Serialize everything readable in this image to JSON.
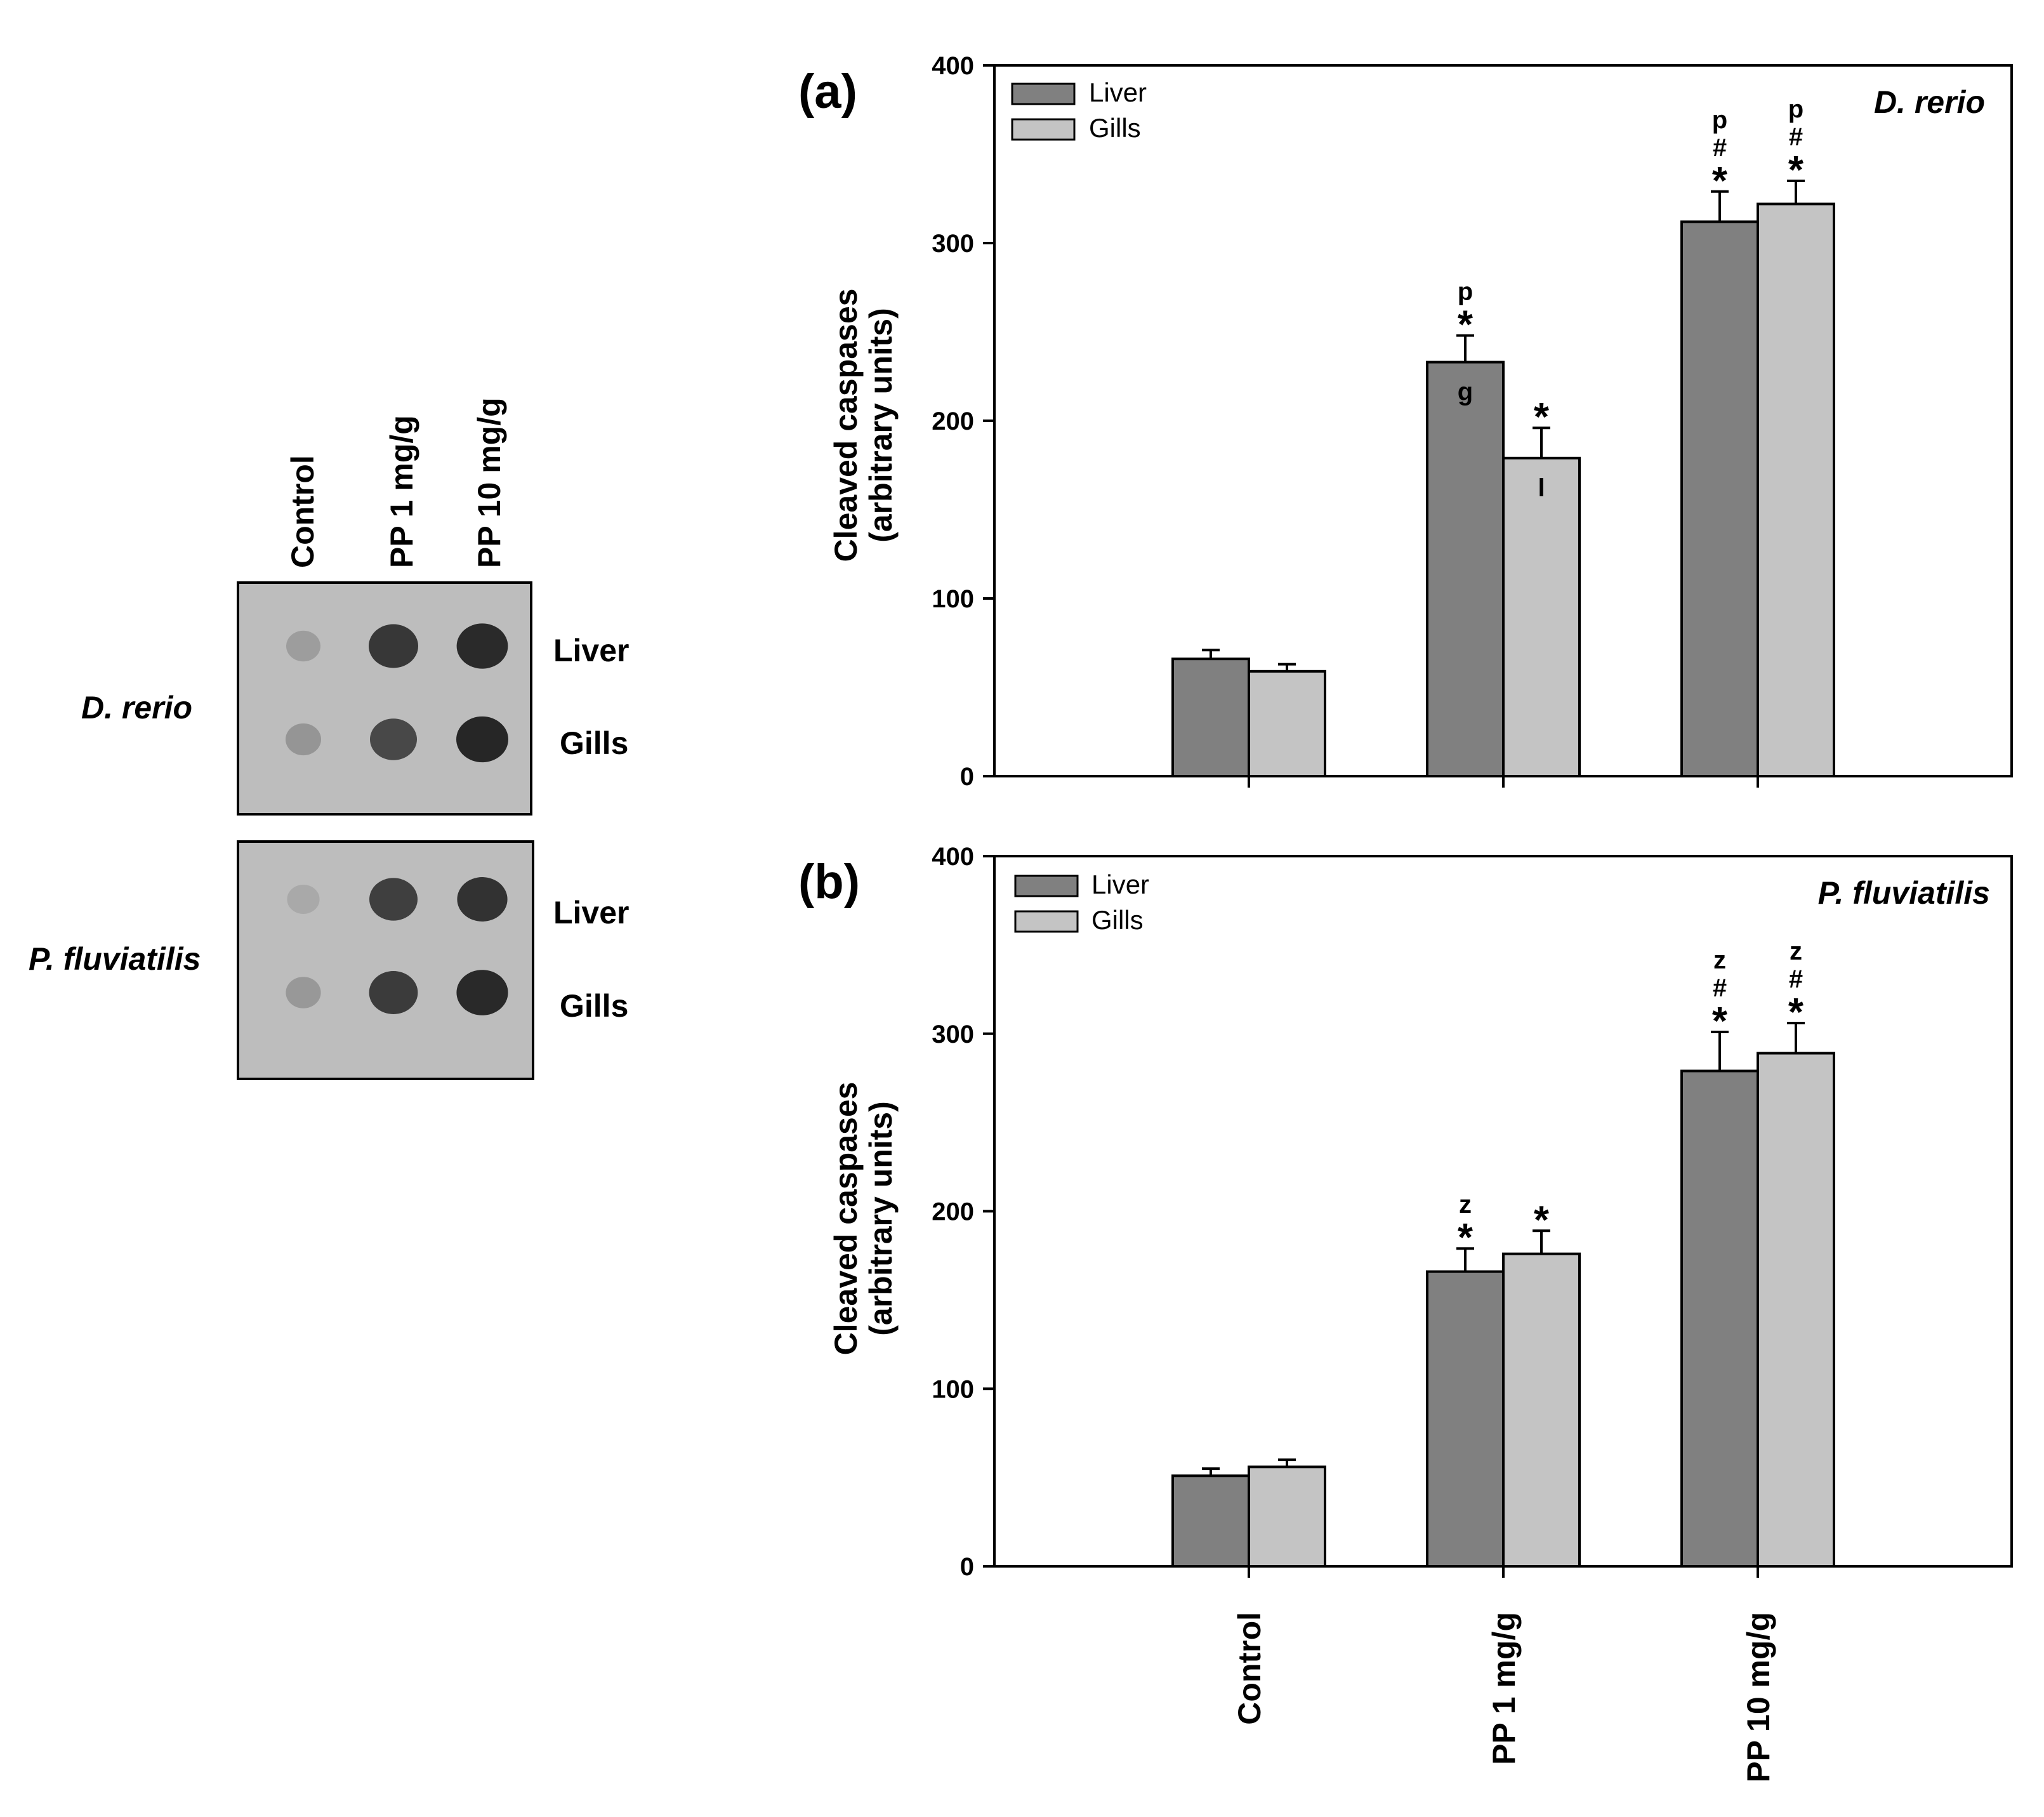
{
  "blot": {
    "lanes": [
      "Control",
      "PP 1 mg/g",
      "PP 10 mg/g"
    ],
    "panels": [
      {
        "species": "D. rerio",
        "rows": [
          "Liver",
          "Gills"
        ],
        "intensity": [
          [
            0.25,
            0.85,
            0.92
          ],
          [
            0.3,
            0.75,
            0.95
          ]
        ]
      },
      {
        "species": "P. fluviatilis",
        "rows": [
          "Liver",
          "Gills"
        ],
        "intensity": [
          [
            0.18,
            0.8,
            0.88
          ],
          [
            0.28,
            0.82,
            0.93
          ]
        ]
      }
    ]
  },
  "colors": {
    "liver": "#808080",
    "gills": "#c4c4c4",
    "blot_bg": "#bdbdbd",
    "axis": "#000000"
  },
  "chart_data": [
    {
      "type": "bar",
      "panel_label": "(a)",
      "title": "D. rerio",
      "categories": [
        "Control",
        "PP 1 mg/g",
        "PP 10 mg/g"
      ],
      "ylabel_line1": "Cleaved caspases",
      "ylabel_line2": "(arbitrary units)",
      "ylim": [
        0,
        400
      ],
      "yticks": [
        0,
        100,
        200,
        300,
        400
      ],
      "legend": [
        "Liver",
        "Gills"
      ],
      "legend_position": "top-left",
      "series": [
        {
          "name": "Liver",
          "values": [
            66,
            233,
            312
          ],
          "errors": [
            5,
            15,
            17
          ],
          "above": [
            "",
            "p\n*",
            "p\n#\n*"
          ],
          "inside": [
            "",
            "g",
            ""
          ]
        },
        {
          "name": "Gills",
          "values": [
            59,
            179,
            322
          ],
          "errors": [
            4,
            17,
            13
          ],
          "above": [
            "",
            "*",
            "p\n#\n*"
          ],
          "inside": [
            "",
            "l",
            ""
          ]
        }
      ],
      "show_x_labels": false
    },
    {
      "type": "bar",
      "panel_label": "(b)",
      "title": "P. fluviatilis",
      "categories": [
        "Control",
        "PP 1 mg/g",
        "PP 10 mg/g"
      ],
      "ylabel_line1": "Cleaved caspases",
      "ylabel_line2": "(arbitrary units)",
      "ylim": [
        0,
        400
      ],
      "yticks": [
        0,
        100,
        200,
        300,
        400
      ],
      "legend": [
        "Liver",
        "Gills"
      ],
      "legend_position": "top-left",
      "series": [
        {
          "name": "Liver",
          "values": [
            51,
            166,
            279
          ],
          "errors": [
            4,
            13,
            22
          ],
          "above": [
            "",
            "z\n*",
            "z\n#\n*"
          ],
          "inside": [
            "",
            "",
            ""
          ]
        },
        {
          "name": "Gills",
          "values": [
            56,
            176,
            289
          ],
          "errors": [
            4,
            13,
            17
          ],
          "above": [
            "",
            "*",
            "z\n#\n*"
          ],
          "inside": [
            "",
            "",
            ""
          ]
        }
      ],
      "show_x_labels": true
    }
  ]
}
